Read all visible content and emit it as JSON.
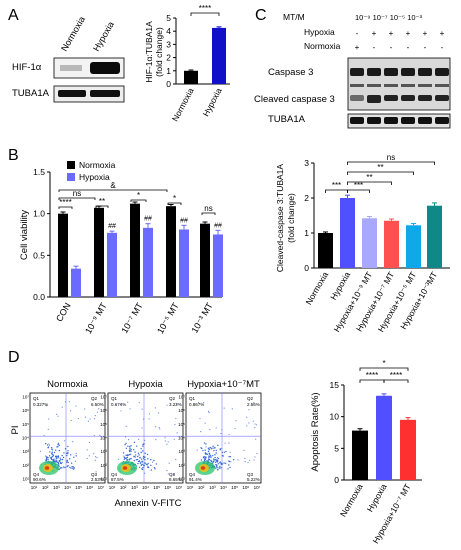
{
  "panel_labels": [
    "A",
    "B",
    "C",
    "D"
  ],
  "panel_a": {
    "blot_lane_labels": [
      "Normoxia",
      "Hypoxia"
    ],
    "blot_row_labels": [
      "HIF-1α",
      "TUBA1A"
    ],
    "sig_label": "****"
  },
  "panel_c_blot": {
    "row_headers": [
      "MT/M",
      "Hypoxia",
      "Normoxia"
    ],
    "mt_header": "10⁻⁹ 10⁻⁷ 10⁻⁵ 10⁻³",
    "hypoxia_signs": [
      "-",
      "+",
      "+",
      "+",
      "+",
      "+"
    ],
    "normoxia_signs": [
      "+",
      "-",
      "-",
      "-",
      "-",
      "-"
    ],
    "band_labels": [
      "Caspase 3",
      "Cleaved caspase 3",
      "TUBA1A"
    ]
  },
  "panel_d_flow": {
    "titles": [
      "Normoxia",
      "Hypoxia",
      "Hypoxia+10⁻⁷MT"
    ],
    "xlabel": "Annexin V-FITC",
    "ylabel": "PI",
    "quadrant_labels": [
      "Q1",
      "Q2",
      "Q3",
      "Q4"
    ],
    "quadrant_values": [
      [
        "0.327%",
        "6.50%",
        "2.53%",
        "90.6%"
      ],
      [
        "0.674%",
        "3.22%",
        "8.65%",
        "87.5%"
      ],
      [
        "0.867%",
        "2.56%",
        "5.22%",
        "91.4%"
      ]
    ],
    "x_ticks": [
      "10¹",
      "10²",
      "10³",
      "10⁴",
      "10⁵",
      "10⁶",
      "10⁷"
    ],
    "y_ticks": [
      "10¹",
      "10²",
      "10³",
      "10⁴",
      "10⁵",
      "10⁶",
      "10⁷"
    ]
  },
  "chart_data": [
    {
      "id": "A",
      "type": "bar",
      "categories": [
        "Normoxia",
        "Hypoxia"
      ],
      "values": [
        1.0,
        4.25
      ],
      "errors": [
        0.06,
        0.08
      ],
      "colors": [
        "#000000",
        "#1010c8"
      ],
      "ylabel": "HIF-1α:TUBA1A\n(fold change)",
      "ylim": [
        0,
        5
      ],
      "yticks": [
        0,
        1,
        2,
        3,
        4,
        5
      ],
      "significance": [
        {
          "pair": [
            0,
            1
          ],
          "label": "****"
        }
      ]
    },
    {
      "id": "B",
      "type": "bar",
      "categories": [
        "CON",
        "10⁻⁹ MT",
        "10⁻⁷ MT",
        "10⁻⁵ MT",
        "10⁻³ MT"
      ],
      "series": [
        {
          "name": "Normoxia",
          "color": "#000000",
          "values": [
            1.0,
            1.07,
            1.12,
            1.09,
            0.88
          ],
          "errors": [
            0.02,
            0.02,
            0.02,
            0.02,
            0.02
          ]
        },
        {
          "name": "Hypoxia",
          "color": "#6b6bff",
          "values": [
            0.34,
            0.77,
            0.83,
            0.81,
            0.75
          ],
          "errors": [
            0.03,
            0.02,
            0.05,
            0.05,
            0.05
          ]
        }
      ],
      "ylabel": "Cell viability",
      "ylim": [
        0,
        1.5
      ],
      "yticks": [
        "0.0",
        "0.5",
        "1.0",
        "1.5"
      ],
      "legend": "top-left",
      "markers": [
        "",
        "##",
        "##",
        "##",
        "##"
      ],
      "significance": [
        {
          "label": "****"
        },
        {
          "label": "**"
        },
        {
          "label": "*"
        },
        {
          "label": "*"
        },
        {
          "label": "ns"
        },
        {
          "label": "ns"
        },
        {
          "label": "&"
        }
      ]
    },
    {
      "id": "C",
      "type": "bar",
      "categories": [
        "Normoxia",
        "Hypoxia",
        "Hypoxia+10⁻⁹ MT",
        "Hypoxia+10⁻⁷ MT",
        "Hypoxia+10⁻⁵ MT",
        "Hypoxia+10⁻³MT"
      ],
      "values": [
        1.0,
        2.0,
        1.42,
        1.35,
        1.22,
        1.78
      ],
      "errors": [
        0.03,
        0.08,
        0.05,
        0.05,
        0.05,
        0.08
      ],
      "colors": [
        "#000000",
        "#5050ff",
        "#a8a8ff",
        "#ff5050",
        "#10a8e8",
        "#108888"
      ],
      "ylabel": "Cleaved-caspase 3:TUBA1A\n(fold change)",
      "ylim": [
        0,
        3
      ],
      "yticks": [
        0,
        1,
        2,
        3
      ],
      "significance": [
        {
          "pair": [
            0,
            1
          ],
          "label": "***"
        },
        {
          "pair": [
            1,
            2
          ],
          "label": "***"
        },
        {
          "pair": [
            1,
            3
          ],
          "label": "**"
        },
        {
          "pair": [
            1,
            4
          ],
          "label": "**"
        },
        {
          "pair": [
            1,
            5
          ],
          "label": "ns"
        }
      ]
    },
    {
      "id": "D",
      "type": "bar",
      "categories": [
        "Normoxia",
        "Hypoxia",
        "Hypoxia+10⁻⁷ MT"
      ],
      "values": [
        7.8,
        13.3,
        9.5
      ],
      "errors": [
        0.3,
        0.3,
        0.35
      ],
      "colors": [
        "#000000",
        "#5050ff",
        "#ff3030"
      ],
      "ylabel": "Apoptosis Rate(%)",
      "ylim": [
        0,
        15
      ],
      "yticks": [
        0,
        5,
        10,
        15
      ],
      "significance": [
        {
          "pair": [
            0,
            1
          ],
          "label": "****"
        },
        {
          "pair": [
            1,
            2
          ],
          "label": "****"
        },
        {
          "pair": [
            0,
            2
          ],
          "label": "*"
        }
      ]
    }
  ]
}
